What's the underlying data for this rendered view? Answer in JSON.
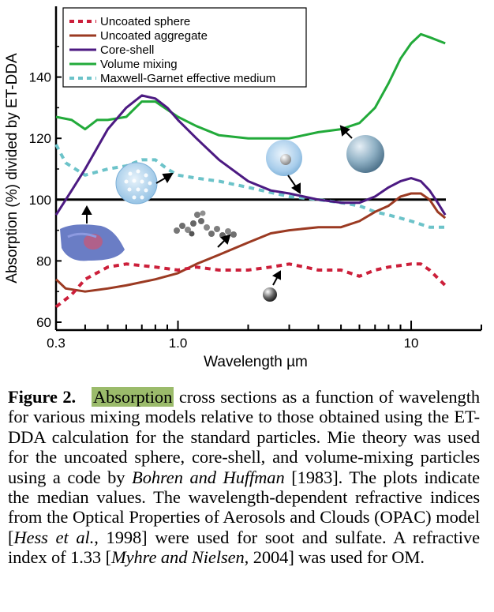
{
  "chart_data": {
    "type": "line",
    "xlabel": "Wavelength  µm",
    "ylabel": "Absorption (%) divided by ET-DDA",
    "x_scale": "log",
    "xlim": [
      0.3,
      20
    ],
    "ylim": [
      60,
      160
    ],
    "x_ticks": [
      {
        "value": 0.3,
        "label": "0.3"
      },
      {
        "value": 1.0,
        "label": "1.0"
      },
      {
        "value": 10,
        "label": "10"
      }
    ],
    "y_ticks": [
      {
        "value": 60,
        "label": "60"
      },
      {
        "value": 80,
        "label": "80"
      },
      {
        "value": 100,
        "label": "100"
      },
      {
        "value": 120,
        "label": "120"
      },
      {
        "value": 140,
        "label": "140"
      }
    ],
    "reference_line": 100,
    "legend_position": "top-left",
    "series": [
      {
        "name": "Uncoated sphere",
        "color": "#cc1f3a",
        "style": "dashed",
        "points": [
          [
            0.3,
            65
          ],
          [
            0.35,
            69
          ],
          [
            0.4,
            74
          ],
          [
            0.5,
            78
          ],
          [
            0.6,
            79
          ],
          [
            0.8,
            78
          ],
          [
            1.0,
            77
          ],
          [
            1.2,
            78
          ],
          [
            1.5,
            77
          ],
          [
            2.0,
            77
          ],
          [
            2.5,
            78
          ],
          [
            3.0,
            79
          ],
          [
            3.5,
            78
          ],
          [
            4.0,
            77
          ],
          [
            5.0,
            77
          ],
          [
            6.0,
            75
          ],
          [
            7.0,
            77
          ],
          [
            8.0,
            78
          ],
          [
            10.0,
            79
          ],
          [
            11.0,
            79
          ],
          [
            12.0,
            77
          ],
          [
            14.0,
            72
          ]
        ]
      },
      {
        "name": "Uncoated aggregate",
        "color": "#9b3a22",
        "style": "solid",
        "points": [
          [
            0.3,
            74
          ],
          [
            0.33,
            71
          ],
          [
            0.4,
            70
          ],
          [
            0.5,
            71
          ],
          [
            0.6,
            72
          ],
          [
            0.8,
            74
          ],
          [
            1.0,
            76
          ],
          [
            1.2,
            79
          ],
          [
            1.5,
            82
          ],
          [
            2.0,
            86
          ],
          [
            2.5,
            89
          ],
          [
            3.0,
            90
          ],
          [
            4.0,
            91
          ],
          [
            5.0,
            91
          ],
          [
            6.0,
            93
          ],
          [
            7.0,
            96
          ],
          [
            8.0,
            98
          ],
          [
            9.0,
            101
          ],
          [
            10.0,
            102
          ],
          [
            11.0,
            102
          ],
          [
            12.0,
            100
          ],
          [
            13.0,
            96
          ],
          [
            14.0,
            94
          ]
        ]
      },
      {
        "name": "Core-shell",
        "color": "#4c1a82",
        "style": "solid",
        "points": [
          [
            0.3,
            95
          ],
          [
            0.35,
            103
          ],
          [
            0.4,
            110
          ],
          [
            0.5,
            123
          ],
          [
            0.6,
            130
          ],
          [
            0.7,
            134
          ],
          [
            0.8,
            133
          ],
          [
            0.9,
            130
          ],
          [
            1.0,
            126
          ],
          [
            1.2,
            120
          ],
          [
            1.5,
            113
          ],
          [
            2.0,
            106
          ],
          [
            2.5,
            103
          ],
          [
            3.0,
            102
          ],
          [
            4.0,
            100
          ],
          [
            5.0,
            99
          ],
          [
            6.0,
            99
          ],
          [
            7.0,
            101
          ],
          [
            8.0,
            104
          ],
          [
            9.0,
            106
          ],
          [
            10.0,
            107
          ],
          [
            11.0,
            106
          ],
          [
            12.0,
            103
          ],
          [
            13.0,
            99
          ],
          [
            14.0,
            95
          ]
        ]
      },
      {
        "name": "Volume mixing",
        "color": "#22aa3a",
        "style": "solid",
        "points": [
          [
            0.3,
            127
          ],
          [
            0.35,
            126
          ],
          [
            0.4,
            123
          ],
          [
            0.45,
            126
          ],
          [
            0.5,
            126
          ],
          [
            0.6,
            127
          ],
          [
            0.7,
            132
          ],
          [
            0.8,
            132
          ],
          [
            1.0,
            127
          ],
          [
            1.2,
            124
          ],
          [
            1.5,
            121
          ],
          [
            2.0,
            120
          ],
          [
            2.5,
            120
          ],
          [
            3.0,
            120
          ],
          [
            4.0,
            122
          ],
          [
            5.0,
            123
          ],
          [
            6.0,
            125
          ],
          [
            7.0,
            130
          ],
          [
            8.0,
            138
          ],
          [
            9.0,
            146
          ],
          [
            10.0,
            151
          ],
          [
            11.0,
            154
          ],
          [
            12.0,
            153
          ],
          [
            14.0,
            151
          ]
        ]
      },
      {
        "name": "Maxwell-Garnet effective medium",
        "color": "#6cc3c9",
        "style": "dashed",
        "points": [
          [
            0.3,
            118
          ],
          [
            0.33,
            112
          ],
          [
            0.4,
            108
          ],
          [
            0.5,
            110
          ],
          [
            0.6,
            111
          ],
          [
            0.7,
            113
          ],
          [
            0.8,
            113
          ],
          [
            0.9,
            110
          ],
          [
            1.0,
            108
          ],
          [
            1.2,
            107
          ],
          [
            1.5,
            106
          ],
          [
            2.0,
            104
          ],
          [
            3.0,
            101
          ],
          [
            4.0,
            100
          ],
          [
            5.0,
            99
          ],
          [
            6.0,
            98
          ],
          [
            7.0,
            96
          ],
          [
            8.0,
            95
          ],
          [
            10.0,
            93
          ],
          [
            12.0,
            91
          ],
          [
            14.0,
            91
          ]
        ]
      }
    ]
  },
  "caption": {
    "label": "Figure 2.",
    "highlight": "Absorption",
    "part1": " cross sections as a function of wavelength for various mixing models relative to those obtained using the ET-DDA calculation for the standard particles. Mie theory was used for the uncoated sphere, core-shell, and volume-mixing particles using a code by ",
    "cite1": "Bohren and Huffman",
    "part2": " [1983]. The plots indicate the median values. The wavelength-dependent refractive indices from the Optical Properties of Aerosols and Clouds (OPAC) model [",
    "cite2": "Hess et al.",
    "part3": ", 1998] were used for soot and sulfate. A refractive index of 1.33 [",
    "cite3": "Myhre and Nielsen",
    "part4": ", 2004] was used for OM."
  }
}
